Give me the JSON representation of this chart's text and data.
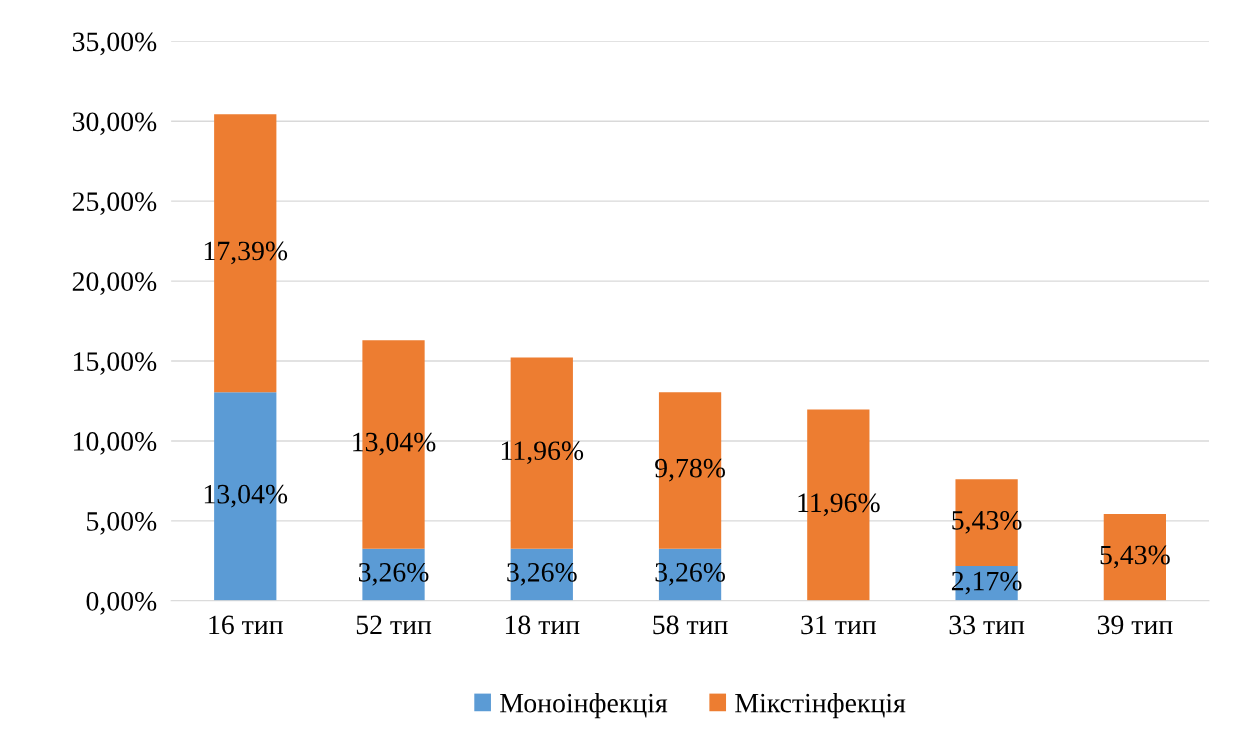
{
  "chart_data": {
    "type": "bar",
    "stacked": true,
    "categories": [
      "16 тип",
      "52 тип",
      "18 тип",
      "58 тип",
      "31 тип",
      "33 тип",
      "39 тип"
    ],
    "series": [
      {
        "name": "Моноінфекція",
        "color": "#5b9bd5",
        "values": [
          13.04,
          3.26,
          3.26,
          3.26,
          0,
          2.17,
          0
        ],
        "value_labels": [
          "13,04%",
          "3,26%",
          "3,26%",
          "3,26%",
          null,
          "2,17%",
          null
        ]
      },
      {
        "name": "Мікстінфекція",
        "color": "#ed7d31",
        "values": [
          17.39,
          13.04,
          11.96,
          9.78,
          11.96,
          5.43,
          5.43
        ],
        "value_labels": [
          "17,39%",
          "13,04%",
          "11,96%",
          "9,78%",
          "11,96%",
          "5,43%",
          "5,43%"
        ]
      }
    ],
    "ylim": [
      0,
      35
    ],
    "yticks": [
      {
        "value": 0,
        "label": "0,00%"
      },
      {
        "value": 5,
        "label": "5,00%"
      },
      {
        "value": 10,
        "label": "10,00%"
      },
      {
        "value": 15,
        "label": "15,00%"
      },
      {
        "value": 20,
        "label": "20,00%"
      },
      {
        "value": 25,
        "label": "25,00%"
      },
      {
        "value": 30,
        "label": "30,00%"
      },
      {
        "value": 35,
        "label": "35,00%"
      }
    ],
    "grid": "y",
    "legend": "bottom"
  }
}
